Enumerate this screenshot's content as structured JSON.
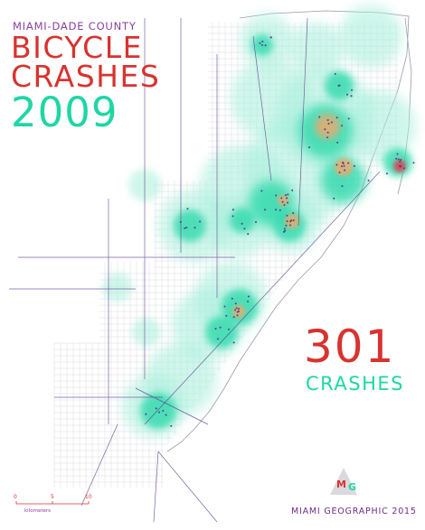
{
  "title": {
    "county": "MIAMI-DADE COUNTY",
    "line1": "BICYCLE",
    "line2": "CRASHES",
    "year": "2009"
  },
  "summary": {
    "count": "301",
    "label": "CRASHES"
  },
  "credit": "MIAMI GEOGRAPHIC 2015",
  "logo": {
    "m": "M",
    "g": "G",
    "icon": "triangle-logo-icon"
  },
  "scale": {
    "ticks": [
      "0",
      "5",
      "10"
    ],
    "unit": "kilometers"
  },
  "colors": {
    "roads_minor": "#c8c8cc",
    "roads_major": "#5b3a8c",
    "density_low": "#a9f0dc",
    "density_mid": "#2fd9ac",
    "density_high": "#f4a66a",
    "density_peak": "#e8364b",
    "title_red": "#d8332f",
    "title_teal": "#1fd6a6",
    "subtitle_purple": "#8a3fa0"
  }
}
